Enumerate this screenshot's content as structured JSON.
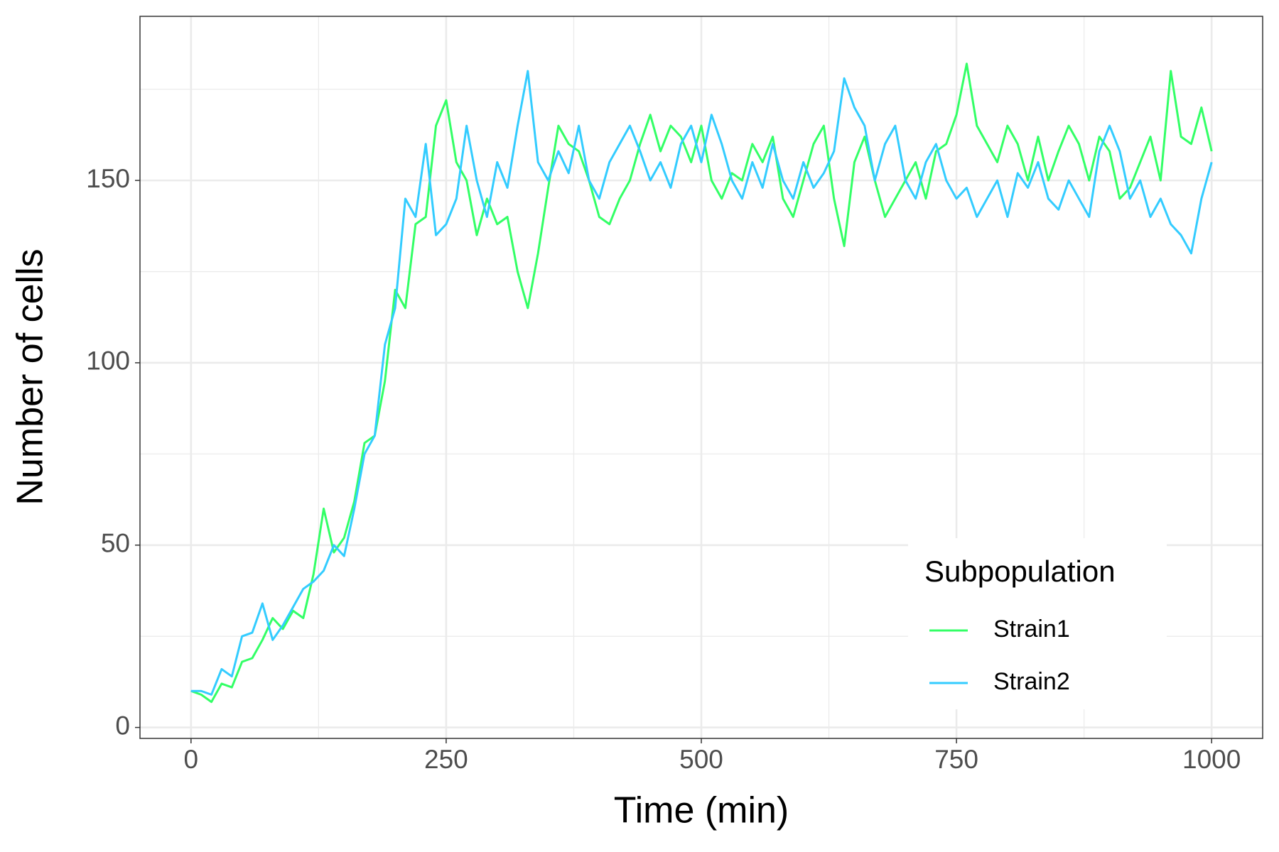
{
  "chart_data": {
    "type": "line",
    "x_label": "Time (min)",
    "y_label": "Number of cells",
    "legend_title": "Subpopulation",
    "legend_position": "bottom-right",
    "grid": true,
    "xlim": [
      -50,
      1050
    ],
    "ylim": [
      -3,
      195
    ],
    "xticks": [
      0,
      250,
      500,
      750,
      1000
    ],
    "yticks": [
      0,
      50,
      100,
      150
    ],
    "xminor": [
      125,
      375,
      625,
      875
    ],
    "yminor": [
      25,
      75,
      125,
      175
    ],
    "x": [
      0,
      10,
      20,
      30,
      40,
      50,
      60,
      70,
      80,
      90,
      100,
      110,
      120,
      130,
      140,
      150,
      160,
      170,
      180,
      190,
      200,
      210,
      220,
      230,
      240,
      250,
      260,
      270,
      280,
      290,
      300,
      310,
      320,
      330,
      340,
      350,
      360,
      370,
      380,
      390,
      400,
      410,
      420,
      430,
      440,
      450,
      460,
      470,
      480,
      490,
      500,
      510,
      520,
      530,
      540,
      550,
      560,
      570,
      580,
      590,
      600,
      610,
      620,
      630,
      640,
      650,
      660,
      670,
      680,
      690,
      700,
      710,
      720,
      730,
      740,
      750,
      760,
      770,
      780,
      790,
      800,
      810,
      820,
      830,
      840,
      850,
      860,
      870,
      880,
      890,
      900,
      910,
      920,
      930,
      940,
      950,
      960,
      970,
      980,
      990,
      1000
    ],
    "series": [
      {
        "name": "Strain1",
        "color": "#33ff66",
        "values": [
          10,
          9,
          7,
          12,
          11,
          18,
          19,
          24,
          30,
          27,
          32,
          30,
          42,
          60,
          48,
          52,
          62,
          78,
          80,
          95,
          120,
          115,
          138,
          140,
          165,
          172,
          155,
          150,
          135,
          145,
          138,
          140,
          125,
          115,
          130,
          148,
          165,
          160,
          158,
          150,
          140,
          138,
          145,
          150,
          160,
          168,
          158,
          165,
          162,
          155,
          165,
          150,
          145,
          152,
          150,
          160,
          155,
          162,
          145,
          140,
          150,
          160,
          165,
          145,
          132,
          155,
          162,
          150,
          140,
          145,
          150,
          155,
          145,
          158,
          160,
          168,
          182,
          165,
          160,
          155,
          165,
          160,
          150,
          162,
          150,
          158,
          165,
          160,
          150,
          162,
          158,
          145,
          148,
          155,
          162,
          150,
          180,
          162,
          160,
          170,
          158
        ]
      },
      {
        "name": "Strain2",
        "color": "#33ccff",
        "values": [
          10,
          10,
          9,
          16,
          14,
          25,
          26,
          34,
          24,
          28,
          33,
          38,
          40,
          43,
          50,
          47,
          60,
          75,
          80,
          105,
          115,
          145,
          140,
          160,
          135,
          138,
          145,
          165,
          150,
          140,
          155,
          148,
          165,
          180,
          155,
          150,
          158,
          152,
          165,
          150,
          145,
          155,
          160,
          165,
          158,
          150,
          155,
          148,
          160,
          165,
          155,
          168,
          160,
          150,
          145,
          155,
          148,
          160,
          150,
          145,
          155,
          148,
          152,
          158,
          178,
          170,
          165,
          150,
          160,
          165,
          150,
          145,
          155,
          160,
          150,
          145,
          148,
          140,
          145,
          150,
          140,
          152,
          148,
          155,
          145,
          142,
          150,
          145,
          140,
          158,
          165,
          158,
          145,
          150,
          140,
          145,
          138,
          135,
          130,
          145,
          155
        ]
      }
    ]
  }
}
